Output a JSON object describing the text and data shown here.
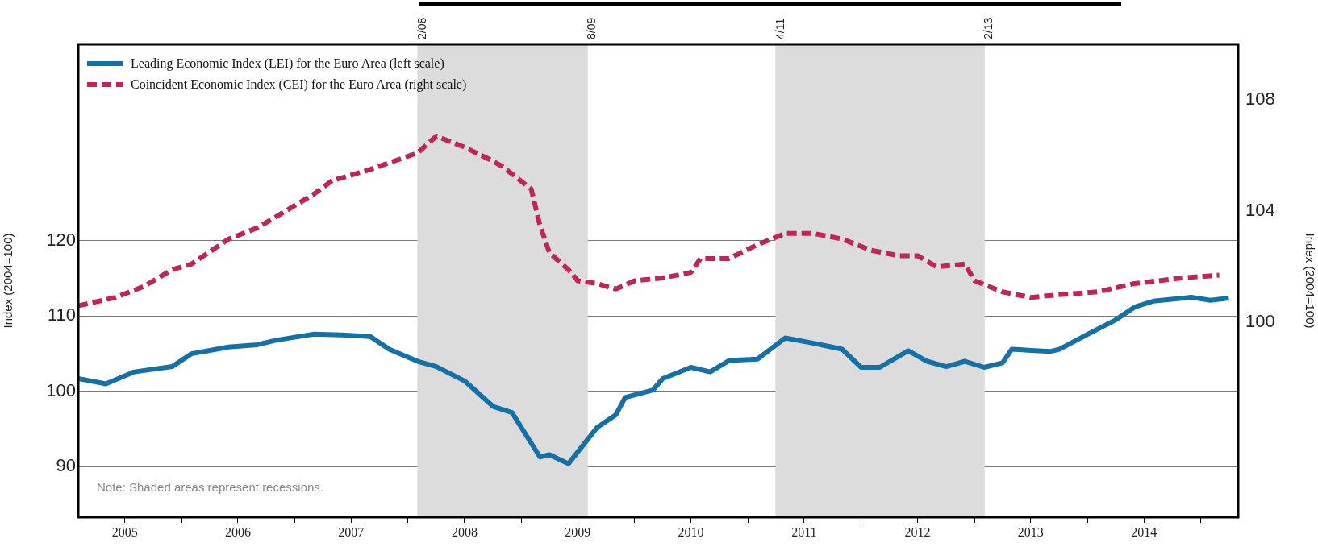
{
  "chart_data": {
    "type": "line",
    "ylabel": "Index (2004=100)",
    "y2label": "Index (2004=100)",
    "xlim": [
      "2005-02",
      "2015-05"
    ],
    "xticks": [
      {
        "value": "2005-07",
        "label": "2005"
      },
      {
        "value": "2006-01",
        "label": null
      },
      {
        "value": "2006-07",
        "label": "2006"
      },
      {
        "value": "2007-01",
        "label": null
      },
      {
        "value": "2007-07",
        "label": "2007"
      },
      {
        "value": "2008-01",
        "label": null
      },
      {
        "value": "2008-07",
        "label": "2008"
      },
      {
        "value": "2009-01",
        "label": null
      },
      {
        "value": "2009-07",
        "label": "2009"
      },
      {
        "value": "2010-01",
        "label": null
      },
      {
        "value": "2010-07",
        "label": "2010"
      },
      {
        "value": "2011-01",
        "label": null
      },
      {
        "value": "2011-07",
        "label": "2011"
      },
      {
        "value": "2012-01",
        "label": null
      },
      {
        "value": "2012-07",
        "label": "2012"
      },
      {
        "value": "2013-01",
        "label": null
      },
      {
        "value": "2013-07",
        "label": "2013"
      },
      {
        "value": "2014-01",
        "label": null
      },
      {
        "value": "2014-07",
        "label": "2014"
      },
      {
        "value": "2015-01",
        "label": null
      }
    ],
    "ylim": [
      83.3,
      146.1
    ],
    "yticks": [
      90,
      100,
      110,
      120
    ],
    "y2lim": [
      93,
      110
    ],
    "y2ticks": [
      100,
      104,
      108
    ],
    "grid": "y",
    "legend": "top left",
    "series": [
      {
        "name": "Leading Economic Index (LEI) for the Euro Area (left scale)",
        "color": "#1670a8",
        "line_style": "solid",
        "x": [
          "2005-02",
          "2005-05",
          "2005-08",
          "2005-12",
          "2006-02",
          "2006-06",
          "2006-09",
          "2006-11",
          "2007-03",
          "2007-06",
          "2007-09",
          "2007-11",
          "2008-02",
          "2008-04",
          "2008-07",
          "2008-10",
          "2008-12",
          "2009-03",
          "2009-04",
          "2009-06",
          "2009-09",
          "2009-11",
          "2009-12",
          "2010-03",
          "2010-04",
          "2010-07",
          "2010-09",
          "2010-11",
          "2011-02",
          "2011-05",
          "2011-08",
          "2011-11",
          "2012-01",
          "2012-03",
          "2012-06",
          "2012-08",
          "2012-10",
          "2012-12",
          "2013-02",
          "2013-04",
          "2013-05",
          "2013-09",
          "2013-10",
          "2014-01",
          "2014-04",
          "2014-06",
          "2014-08",
          "2014-12",
          "2015-02",
          "2015-04"
        ],
        "values": [
          101.7,
          101.0,
          102.6,
          103.3,
          105.0,
          105.9,
          106.2,
          106.8,
          107.6,
          107.5,
          107.3,
          105.6,
          104.0,
          103.3,
          101.4,
          98.0,
          97.2,
          91.3,
          91.6,
          90.4,
          95.2,
          96.9,
          99.2,
          100.2,
          101.7,
          103.2,
          102.6,
          104.1,
          104.3,
          107.1,
          106.4,
          105.6,
          103.2,
          103.2,
          105.4,
          104.0,
          103.3,
          104.0,
          103.2,
          103.8,
          105.6,
          105.3,
          105.6,
          107.6,
          109.5,
          111.2,
          112.0,
          112.5,
          112.1,
          112.4
        ]
      },
      {
        "name": "Coincident Economic Index (CEI) for the Euro Area (right scale)",
        "color": "#c0245a",
        "line_style": "dashed",
        "axis": "y2",
        "x": [
          "2005-02",
          "2005-06",
          "2005-09",
          "2005-12",
          "2006-02",
          "2006-06",
          "2006-09",
          "2006-12",
          "2007-03",
          "2007-05",
          "2007-09",
          "2008-02",
          "2008-04",
          "2008-07",
          "2008-10",
          "2008-11",
          "2009-02",
          "2009-03",
          "2009-04",
          "2009-06",
          "2009-07",
          "2009-09",
          "2009-11",
          "2010-01",
          "2010-04",
          "2010-07",
          "2010-08",
          "2010-11",
          "2011-02",
          "2011-05",
          "2011-08",
          "2011-11",
          "2012-02",
          "2012-05",
          "2012-07",
          "2012-09",
          "2012-12",
          "2013-01",
          "2013-04",
          "2013-07",
          "2013-10",
          "2014-02",
          "2014-06",
          "2014-11",
          "2015-03"
        ],
        "values": [
          100.6,
          100.9,
          101.3,
          101.9,
          102.1,
          103.0,
          103.4,
          104.0,
          104.6,
          105.1,
          105.5,
          106.1,
          106.7,
          106.3,
          105.8,
          105.6,
          104.8,
          103.5,
          102.5,
          101.9,
          101.5,
          101.4,
          101.2,
          101.5,
          101.6,
          101.8,
          102.3,
          102.3,
          102.8,
          103.2,
          103.2,
          103.0,
          102.6,
          102.4,
          102.4,
          102.0,
          102.1,
          101.5,
          101.1,
          100.9,
          101.0,
          101.1,
          101.4,
          101.6,
          101.7
        ]
      }
    ],
    "bands": [
      {
        "axis": "x",
        "from": "2008-02",
        "to": "2009-08",
        "color": "#dcdcdc"
      },
      {
        "axis": "x",
        "from": "2011-04",
        "to": "2013-02",
        "color": "#dcdcdc"
      }
    ],
    "ref_lines": [
      {
        "axis": "x",
        "value": "2008-02",
        "label": "2/08",
        "color": "#dcdcdc"
      },
      {
        "axis": "x",
        "value": "2009-08",
        "label": "8/09",
        "color": "#dcdcdc"
      },
      {
        "axis": "x",
        "value": "2011-04",
        "label": "4/11",
        "color": "#dcdcdc"
      },
      {
        "axis": "x",
        "value": "2013-02",
        "label": "2/13",
        "color": "#dcdcdc"
      }
    ],
    "annotations": [
      "Note: Shaded areas represent recessions."
    ]
  }
}
